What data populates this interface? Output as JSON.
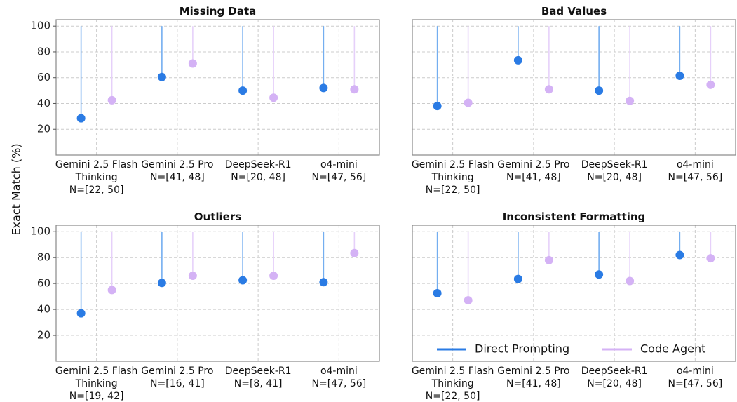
{
  "ylabel": "Exact Match (%)",
  "legend": [
    {
      "label": "Direct Prompting",
      "color": "#2a7be4"
    },
    {
      "label": "Code Agent",
      "color": "#d4b2f5"
    }
  ],
  "colors": {
    "direct_marker": "#2a7be4",
    "direct_stem": "#74aef0",
    "agent_marker": "#d4b2f5",
    "agent_stem": "#e6d0fa",
    "grid": "#cccccc",
    "frame": "#888888"
  },
  "chart_data": [
    {
      "type": "lollipop",
      "title": "Missing Data",
      "categories": [
        "Gemini 2.5 Flash\nThinking\nN=[22, 50]",
        "Gemini 2.5 Pro\nN=[41, 48]",
        "DeepSeek-R1\nN=[20, 48]",
        "o4-mini\nN=[47, 56]"
      ],
      "series": [
        {
          "name": "Direct Prompting",
          "values": [
            28.5,
            60.5,
            50,
            52
          ]
        },
        {
          "name": "Code Agent",
          "values": [
            42.5,
            71,
            44.5,
            51
          ]
        }
      ],
      "stem_top": 100,
      "ylim": [
        0,
        105
      ],
      "yticks": [
        20,
        40,
        60,
        80,
        100
      ],
      "show_yticks": true,
      "grid": true,
      "show_legend": false
    },
    {
      "type": "lollipop",
      "title": "Bad Values",
      "categories": [
        "Gemini 2.5 Flash\nThinking\nN=[22, 50]",
        "Gemini 2.5 Pro\nN=[41, 48]",
        "DeepSeek-R1\nN=[20, 48]",
        "o4-mini\nN=[47, 56]"
      ],
      "series": [
        {
          "name": "Direct Prompting",
          "values": [
            38,
            73.5,
            50,
            61.5
          ]
        },
        {
          "name": "Code Agent",
          "values": [
            40.5,
            51,
            42,
            54.5
          ]
        }
      ],
      "stem_top": 100,
      "ylim": [
        0,
        105
      ],
      "yticks": [
        20,
        40,
        60,
        80,
        100
      ],
      "show_yticks": false,
      "grid": true,
      "show_legend": false
    },
    {
      "type": "lollipop",
      "title": "Outliers",
      "categories": [
        "Gemini 2.5 Flash\nThinking\nN=[19, 42]",
        "Gemini 2.5 Pro\nN=[16, 41]",
        "DeepSeek-R1\nN=[8, 41]",
        "o4-mini\nN=[47, 56]"
      ],
      "series": [
        {
          "name": "Direct Prompting",
          "values": [
            37,
            60.5,
            62.5,
            61
          ]
        },
        {
          "name": "Code Agent",
          "values": [
            55,
            66,
            66,
            83.5
          ]
        }
      ],
      "stem_top": 100,
      "ylim": [
        0,
        105
      ],
      "yticks": [
        20,
        40,
        60,
        80,
        100
      ],
      "show_yticks": true,
      "grid": true,
      "show_legend": false
    },
    {
      "type": "lollipop",
      "title": "Inconsistent Formatting",
      "categories": [
        "Gemini 2.5 Flash\nThinking\nN=[22, 50]",
        "Gemini 2.5 Pro\nN=[41, 48]",
        "DeepSeek-R1\nN=[20, 48]",
        "o4-mini\nN=[47, 56]"
      ],
      "series": [
        {
          "name": "Direct Prompting",
          "values": [
            52.5,
            63.5,
            67,
            82
          ]
        },
        {
          "name": "Code Agent",
          "values": [
            47,
            78,
            62,
            79.5
          ]
        }
      ],
      "stem_top": 100,
      "ylim": [
        0,
        105
      ],
      "yticks": [
        20,
        40,
        60,
        80,
        100
      ],
      "show_yticks": false,
      "grid": true,
      "show_legend": true,
      "legend_position": "lower-right"
    }
  ]
}
